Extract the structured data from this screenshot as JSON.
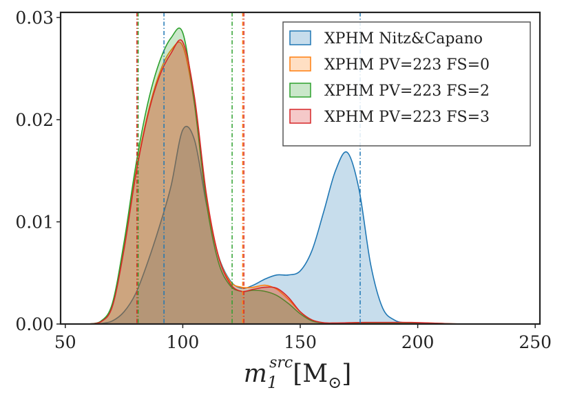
{
  "chart_data": {
    "type": "area",
    "title": "",
    "xlabel_main": "m",
    "xlabel_sub": "1",
    "xlabel_sup": "src",
    "xlabel_unit_open": "[M",
    "xlabel_unit_sub": "⊙",
    "xlabel_unit_close": "]",
    "ylabel": "",
    "xlim": [
      48,
      252
    ],
    "ylim": [
      0,
      0.0305
    ],
    "xticks": [
      50,
      100,
      150,
      200,
      250
    ],
    "xtick_labels": [
      "50",
      "100",
      "150",
      "200",
      "250"
    ],
    "yticks": [
      0,
      0.01,
      0.02,
      0.03
    ],
    "ytick_labels": [
      "0.00",
      "0.01",
      "0.02",
      "0.03"
    ],
    "grid": false,
    "legend_position": "top-right",
    "x": [
      60,
      65,
      70,
      75,
      80,
      85,
      90,
      95,
      100,
      105,
      110,
      115,
      120,
      125,
      130,
      135,
      140,
      145,
      150,
      155,
      160,
      165,
      170,
      175,
      180,
      185,
      190,
      195,
      200,
      205,
      210,
      215,
      220
    ],
    "series": [
      {
        "name": "XPHM Nitz&Capano",
        "color": "#1f77b4",
        "fill_opacity": 0.25,
        "values": [
          0,
          5e-05,
          0.0003,
          0.0012,
          0.003,
          0.006,
          0.0095,
          0.0135,
          0.019,
          0.018,
          0.0118,
          0.0068,
          0.0043,
          0.0035,
          0.0038,
          0.0044,
          0.0048,
          0.0048,
          0.0052,
          0.0072,
          0.011,
          0.015,
          0.0168,
          0.0132,
          0.0058,
          0.0016,
          0.0004,
          0.0001,
          0,
          0,
          0,
          0,
          0
        ],
        "vlines": [
          92,
          175.5
        ]
      },
      {
        "name": "XPHM PV=223 FS=0",
        "color": "#ff7f0e",
        "fill_opacity": 0.25,
        "values": [
          0,
          0.0002,
          0.0018,
          0.0075,
          0.0148,
          0.0205,
          0.0245,
          0.0268,
          0.0272,
          0.0215,
          0.0125,
          0.0068,
          0.0042,
          0.0036,
          0.0036,
          0.0038,
          0.0034,
          0.0024,
          0.0012,
          0.0004,
          0.00012,
          0.0001,
          0.00012,
          0.00015,
          0.00015,
          0.0001,
          0.0001,
          0.00012,
          0.0001,
          0.0001,
          6e-05,
          2e-05,
          0
        ],
        "vlines": [
          80.5,
          125.5
        ]
      },
      {
        "name": "XPHM PV=223 FS=2",
        "color": "#2ca02c",
        "fill_opacity": 0.25,
        "values": [
          0,
          0.00025,
          0.002,
          0.008,
          0.0155,
          0.0215,
          0.0256,
          0.028,
          0.0285,
          0.0215,
          0.012,
          0.0062,
          0.0038,
          0.0032,
          0.0033,
          0.0032,
          0.0028,
          0.002,
          0.001,
          0.0003,
          0.0001,
          8e-05,
          0.0001,
          0.00012,
          0.00012,
          0.0001,
          0.0001,
          0.00012,
          0.0001,
          8e-05,
          4e-05,
          1e-05,
          0
        ],
        "vlines": [
          81,
          121
        ]
      },
      {
        "name": "XPHM PV=223 FS=3",
        "color": "#d62728",
        "fill_opacity": 0.25,
        "values": [
          0,
          0.0002,
          0.0017,
          0.0073,
          0.0146,
          0.0203,
          0.0242,
          0.0265,
          0.0276,
          0.0222,
          0.0128,
          0.0068,
          0.004,
          0.0032,
          0.0034,
          0.0036,
          0.0035,
          0.0026,
          0.0012,
          0.0004,
          0.00012,
          0.0001,
          0.00012,
          0.00015,
          0.00016,
          0.00016,
          0.00016,
          0.00016,
          0.00014,
          0.0001,
          6e-05,
          2e-05,
          0
        ],
        "vlines": [
          80.5,
          126
        ]
      }
    ]
  }
}
